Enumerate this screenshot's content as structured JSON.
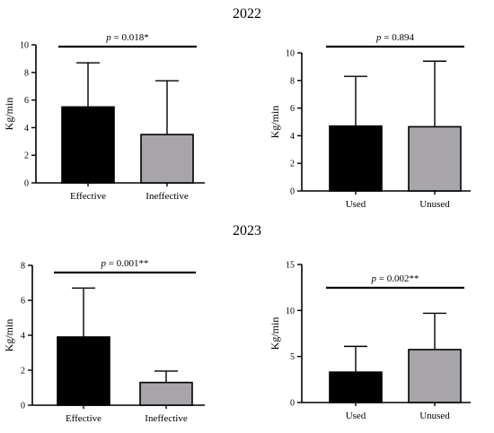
{
  "sections": [
    "2022",
    "2023"
  ],
  "colors": {
    "black_bar": "#000000",
    "gray_bar": "#a7a4aa",
    "ink": "#000000"
  },
  "chart_data": [
    {
      "type": "bar",
      "section": "2022",
      "categories": [
        "Effective",
        "Ineffective"
      ],
      "values": [
        5.5,
        3.5
      ],
      "error_upper": [
        8.7,
        7.4
      ],
      "bar_colors": [
        "#000000",
        "#a7a4aa"
      ],
      "ylabel": "Kg/min",
      "ylim": [
        0,
        10
      ],
      "yticks": [
        0,
        2,
        4,
        6,
        8,
        10
      ],
      "annotation": {
        "p_symbol": "p",
        "p_rest": " = 0.018*"
      }
    },
    {
      "type": "bar",
      "section": "2022",
      "categories": [
        "Used",
        "Unused"
      ],
      "values": [
        4.7,
        4.65
      ],
      "error_upper": [
        8.3,
        9.4
      ],
      "bar_colors": [
        "#000000",
        "#a7a4aa"
      ],
      "ylabel": "Kg/min",
      "ylim": [
        0,
        10
      ],
      "yticks": [
        0,
        2,
        4,
        6,
        8,
        10
      ],
      "annotation": {
        "p_symbol": "p",
        "p_rest": " = 0.894"
      }
    },
    {
      "type": "bar",
      "section": "2023",
      "categories": [
        "Effective",
        "Ineffective"
      ],
      "values": [
        3.9,
        1.3
      ],
      "error_upper": [
        6.7,
        1.95
      ],
      "bar_colors": [
        "#000000",
        "#a7a4aa"
      ],
      "ylabel": "Kg/min",
      "ylim": [
        0,
        8
      ],
      "yticks": [
        0,
        2,
        4,
        6,
        8
      ],
      "annotation": {
        "p_symbol": "p",
        "p_rest": " = 0.001**"
      }
    },
    {
      "type": "bar",
      "section": "2023",
      "categories": [
        "Used",
        "Unused"
      ],
      "values": [
        3.3,
        5.75
      ],
      "error_upper": [
        6.1,
        9.7
      ],
      "bar_colors": [
        "#000000",
        "#a7a4aa"
      ],
      "ylabel": "Kg/min",
      "ylim": [
        0,
        15
      ],
      "yticks": [
        0,
        5,
        10,
        15
      ],
      "annotation": {
        "p_symbol": "p",
        "p_rest": " = 0.002**"
      }
    }
  ]
}
